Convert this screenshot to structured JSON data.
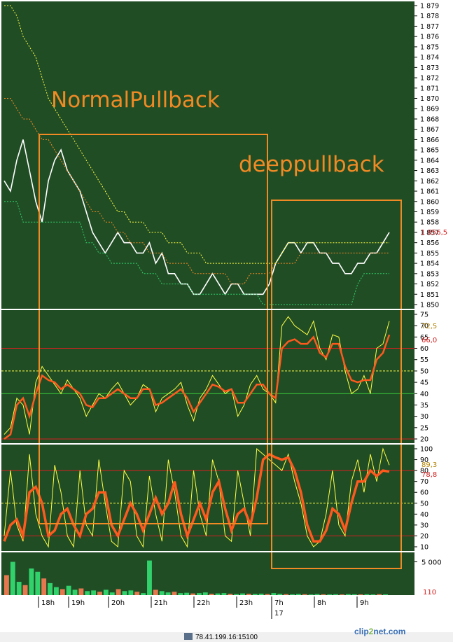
{
  "chart_data": [
    {
      "panel": "price",
      "type": "line",
      "annotations": [
        "NormalPullback",
        "deeppullback"
      ],
      "ylim": [
        1850,
        1879
      ],
      "yticks": [
        "1 850",
        "1 851",
        "1 852",
        "1 853",
        "1 854",
        "1 855",
        "1 856",
        "1 857",
        "1 858",
        "1 859",
        "1 860",
        "1 861",
        "1 862",
        "1 863",
        "1 864",
        "1 865",
        "1 866",
        "1 867",
        "1 868",
        "1 869",
        "1 870",
        "1 871",
        "1 872",
        "1 873",
        "1 874",
        "1 875",
        "1 876",
        "1 877",
        "1 878",
        "1 879"
      ],
      "last_price_label": "1 856,5",
      "series": [
        {
          "values": [
            1862,
            1861,
            1864,
            1866,
            1863,
            1860,
            1858,
            1862,
            1864,
            1865,
            1863,
            1862,
            1861,
            1859,
            1857,
            1856,
            1855,
            1856,
            1857,
            1856,
            1856,
            1855,
            1855,
            1856,
            1854,
            1855,
            1853,
            1853,
            1852,
            1852,
            1851,
            1851,
            1852,
            1853,
            1852,
            1851,
            1852,
            1852,
            1851,
            1851,
            1851,
            1851,
            1852,
            1854,
            1855,
            1856,
            1856,
            1855,
            1856,
            1856,
            1855,
            1855,
            1854,
            1854,
            1853,
            1853,
            1854,
            1854,
            1855,
            1855,
            1856,
            1857
          ]
        },
        {
          "values": [
            1870,
            1870,
            1869,
            1868,
            1868,
            1867,
            1866,
            1866,
            1865,
            1864,
            1863,
            1862,
            1861,
            1860,
            1859,
            1859,
            1858,
            1858,
            1857,
            1857,
            1856,
            1856,
            1856,
            1855,
            1855,
            1855,
            1854,
            1854,
            1854,
            1854,
            1853,
            1853,
            1853,
            1853,
            1853,
            1853,
            1852,
            1852,
            1852,
            1853,
            1853,
            1853,
            1853,
            1854,
            1854,
            1854,
            1854,
            1855,
            1855,
            1855,
            1855,
            1855,
            1855,
            1855,
            1855,
            1855,
            1855,
            1855,
            1855,
            1855,
            1855,
            1855
          ]
        },
        {
          "values": [
            1879,
            1879,
            1878,
            1876,
            1875,
            1874,
            1872,
            1870,
            1869,
            1868,
            1867,
            1866,
            1865,
            1864,
            1863,
            1862,
            1861,
            1860,
            1859,
            1859,
            1858,
            1858,
            1858,
            1857,
            1857,
            1857,
            1856,
            1856,
            1856,
            1855,
            1855,
            1855,
            1854,
            1854,
            1854,
            1854,
            1854,
            1854,
            1854,
            1854,
            1854,
            1854,
            1854,
            1854,
            1855,
            1856,
            1856,
            1856,
            1856,
            1856,
            1856,
            1856,
            1856,
            1856,
            1856,
            1856,
            1856,
            1856,
            1856,
            1856,
            1856,
            1856
          ]
        },
        {
          "values": [
            1860,
            1860,
            1860,
            1858,
            1858,
            1858,
            1858,
            1858,
            1858,
            1858,
            1858,
            1858,
            1858,
            1856,
            1856,
            1855,
            1855,
            1854,
            1854,
            1854,
            1854,
            1854,
            1853,
            1853,
            1853,
            1852,
            1852,
            1852,
            1852,
            1852,
            1851,
            1851,
            1851,
            1851,
            1851,
            1851,
            1851,
            1851,
            1851,
            1851,
            1851,
            1850,
            1850,
            1850,
            1850,
            1850,
            1850,
            1850,
            1850,
            1850,
            1850,
            1850,
            1850,
            1850,
            1850,
            1850,
            1852,
            1853,
            1853,
            1853,
            1853,
            1853
          ]
        }
      ]
    },
    {
      "panel": "oscillator-1",
      "type": "line",
      "ylim": [
        20,
        75
      ],
      "yticks": [
        "20",
        "25",
        "30",
        "35",
        "40",
        "45",
        "50",
        "55",
        "60",
        "65",
        "70",
        "75"
      ],
      "value_labels": [
        "72,5",
        "66,0"
      ],
      "levels": [
        20,
        40,
        50,
        60
      ],
      "series": [
        {
          "values": [
            22,
            25,
            38,
            35,
            22,
            45,
            52,
            48,
            44,
            40,
            46,
            42,
            38,
            30,
            35,
            40,
            38,
            42,
            45,
            40,
            35,
            38,
            44,
            42,
            32,
            38,
            40,
            42,
            45,
            35,
            28,
            38,
            42,
            48,
            44,
            40,
            42,
            30,
            35,
            44,
            48,
            42,
            40,
            36,
            70,
            74,
            70,
            68,
            66,
            72,
            60,
            55,
            66,
            65,
            50,
            40,
            42,
            48,
            40,
            60,
            62,
            72
          ]
        },
        {
          "values": [
            20,
            22,
            35,
            38,
            30,
            40,
            48,
            46,
            45,
            42,
            44,
            42,
            40,
            35,
            34,
            38,
            38,
            40,
            42,
            40,
            38,
            38,
            42,
            42,
            35,
            36,
            38,
            40,
            42,
            38,
            32,
            36,
            40,
            44,
            43,
            41,
            42,
            36,
            36,
            40,
            44,
            44,
            40,
            38,
            60,
            63,
            64,
            62,
            62,
            65,
            58,
            56,
            62,
            62,
            52,
            46,
            45,
            46,
            46,
            55,
            58,
            66
          ]
        }
      ]
    },
    {
      "panel": "oscillator-2",
      "type": "line",
      "ylim": [
        10,
        100
      ],
      "yticks": [
        "10",
        "20",
        "30",
        "40",
        "50",
        "60",
        "70",
        "80",
        "90",
        "100"
      ],
      "value_labels": [
        "89,3",
        "78,8"
      ],
      "levels": [
        20,
        50,
        80
      ],
      "series": [
        {
          "values": [
            20,
            80,
            30,
            15,
            95,
            40,
            20,
            10,
            85,
            60,
            20,
            10,
            80,
            30,
            20,
            90,
            50,
            15,
            10,
            80,
            70,
            20,
            10,
            75,
            40,
            15,
            90,
            60,
            20,
            10,
            80,
            40,
            20,
            90,
            70,
            20,
            15,
            80,
            50,
            20,
            100,
            95,
            90,
            85,
            80,
            95,
            70,
            50,
            20,
            10,
            15,
            40,
            80,
            30,
            20,
            70,
            90,
            60,
            95,
            70,
            100,
            85
          ]
        },
        {
          "values": [
            15,
            30,
            35,
            20,
            60,
            65,
            50,
            20,
            25,
            40,
            45,
            30,
            20,
            40,
            45,
            60,
            60,
            30,
            20,
            35,
            50,
            40,
            25,
            40,
            55,
            40,
            50,
            70,
            40,
            20,
            35,
            50,
            35,
            60,
            70,
            45,
            25,
            40,
            45,
            30,
            55,
            90,
            95,
            92,
            90,
            92,
            80,
            60,
            30,
            15,
            15,
            25,
            45,
            40,
            25,
            50,
            70,
            70,
            80,
            75,
            80,
            79
          ]
        }
      ]
    },
    {
      "panel": "volume",
      "type": "bar",
      "yticks": [
        "5 000"
      ],
      "value_label": "110",
      "values": [
        3000,
        5000,
        2000,
        1500,
        4000,
        3500,
        2500,
        1800,
        1200,
        900,
        1400,
        800,
        1000,
        600,
        700,
        500,
        800,
        400,
        900,
        600,
        700,
        500,
        300,
        5200,
        800,
        600,
        400,
        500,
        300,
        350,
        250,
        300,
        400,
        200,
        250,
        300,
        200,
        150,
        250,
        200,
        180,
        220,
        160,
        300,
        200,
        150,
        120,
        180,
        140,
        100,
        160,
        120,
        110,
        130,
        100,
        150,
        120,
        110,
        130,
        100,
        140,
        110
      ]
    }
  ],
  "time_axis": {
    "labels": [
      "18h",
      "19h",
      "20h",
      "21h",
      "22h",
      "23h",
      "7h",
      "8h",
      "9h"
    ],
    "date_label": "17"
  },
  "status_bar": {
    "connection": "78.41.199.16:15100"
  },
  "watermark": {
    "text_a": "clip",
    "text_b": "2",
    "text_c": "net.com"
  },
  "colors": {
    "background": "#214d25",
    "grid": "#3f6b3f",
    "price_up": "#31d16b",
    "price_down": "#ffffff",
    "annotation": "#f08a24",
    "osc_slow": "#ff5a1e",
    "osc_fast": "#ffff44",
    "level_red": "#d42020",
    "level_green": "#38d038",
    "volume_up": "#31d16b",
    "volume_down": "#e67850"
  }
}
